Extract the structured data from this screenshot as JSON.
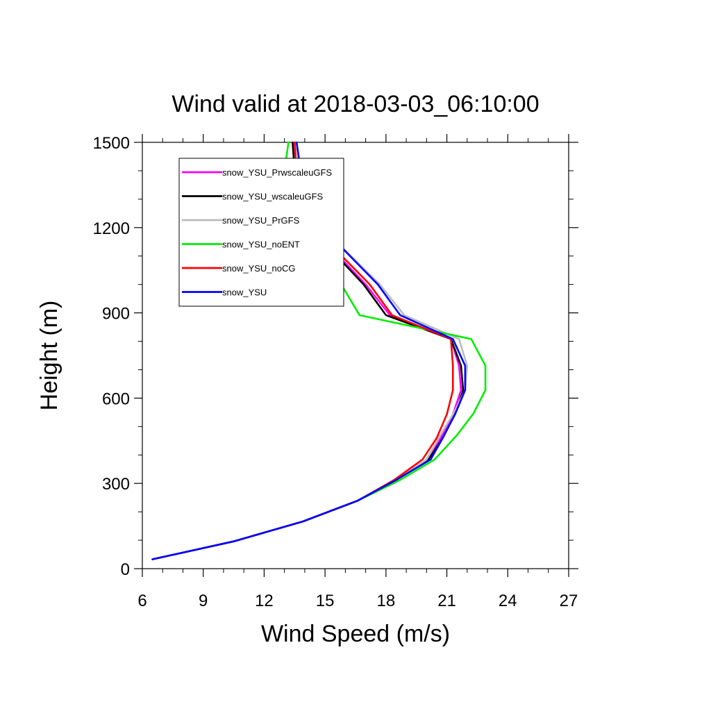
{
  "chart_data": {
    "type": "line",
    "title": "Wind valid at 2018-03-03_06:10:00",
    "xlabel": "Wind Speed (m/s)",
    "ylabel": "Height (m)",
    "xlim": [
      6,
      27
    ],
    "ylim": [
      0,
      1500
    ],
    "x_ticks": [
      "6",
      "9",
      "12",
      "15",
      "18",
      "21",
      "24",
      "27"
    ],
    "y_ticks": [
      "0",
      "300",
      "600",
      "900",
      "1200",
      "1500"
    ],
    "legend_position": "top-left",
    "series": [
      {
        "name": "snow_YSU_PrwscaleuGFS",
        "color": "#ff00ff",
        "points": [
          [
            6.5,
            33
          ],
          [
            10.5,
            96
          ],
          [
            13.9,
            166
          ],
          [
            16.6,
            239
          ],
          [
            18.5,
            312
          ],
          [
            20.1,
            384
          ],
          [
            20.7,
            460
          ],
          [
            21.3,
            543
          ],
          [
            21.7,
            628
          ],
          [
            21.6,
            714
          ],
          [
            21.2,
            808
          ],
          [
            18.2,
            892
          ],
          [
            17.0,
            1000
          ],
          [
            14.5,
            1190
          ],
          [
            13.7,
            1300
          ],
          [
            13.5,
            1500
          ]
        ]
      },
      {
        "name": "snow_YSU_wscaleuGFS",
        "color": "#000000",
        "points": [
          [
            6.5,
            33
          ],
          [
            10.5,
            96
          ],
          [
            13.9,
            166
          ],
          [
            16.6,
            239
          ],
          [
            18.5,
            312
          ],
          [
            20.1,
            384
          ],
          [
            20.8,
            460
          ],
          [
            21.4,
            543
          ],
          [
            21.8,
            628
          ],
          [
            21.7,
            714
          ],
          [
            21.2,
            808
          ],
          [
            18.0,
            892
          ],
          [
            16.9,
            1000
          ],
          [
            14.4,
            1190
          ],
          [
            13.6,
            1300
          ],
          [
            13.4,
            1500
          ]
        ]
      },
      {
        "name": "snow_YSU_PrGFS",
        "color": "#bbbbbb",
        "points": [
          [
            6.5,
            33
          ],
          [
            10.5,
            96
          ],
          [
            13.9,
            166
          ],
          [
            16.6,
            239
          ],
          [
            18.5,
            312
          ],
          [
            20.0,
            384
          ],
          [
            20.6,
            460
          ],
          [
            21.3,
            543
          ],
          [
            21.9,
            628
          ],
          [
            22.0,
            714
          ],
          [
            21.6,
            808
          ],
          [
            18.9,
            892
          ],
          [
            17.7,
            1000
          ],
          [
            15.0,
            1190
          ],
          [
            13.9,
            1300
          ],
          [
            13.6,
            1500
          ]
        ]
      },
      {
        "name": "snow_YSU_noENT",
        "color": "#00ee00",
        "points": [
          [
            6.5,
            33
          ],
          [
            10.5,
            96
          ],
          [
            13.9,
            166
          ],
          [
            16.6,
            239
          ],
          [
            18.7,
            312
          ],
          [
            20.4,
            384
          ],
          [
            21.5,
            470
          ],
          [
            22.3,
            545
          ],
          [
            22.9,
            628
          ],
          [
            22.9,
            714
          ],
          [
            22.2,
            808
          ],
          [
            16.7,
            892
          ],
          [
            15.8,
            1000
          ],
          [
            12.9,
            1190
          ],
          [
            12.8,
            1300
          ],
          [
            13.2,
            1500
          ]
        ]
      },
      {
        "name": "snow_YSU_noCG",
        "color": "#ff0000",
        "points": [
          [
            6.5,
            33
          ],
          [
            10.5,
            96
          ],
          [
            13.9,
            166
          ],
          [
            16.6,
            239
          ],
          [
            18.4,
            312
          ],
          [
            19.8,
            384
          ],
          [
            20.5,
            460
          ],
          [
            21.0,
            543
          ],
          [
            21.3,
            628
          ],
          [
            21.3,
            714
          ],
          [
            21.2,
            808
          ],
          [
            18.3,
            892
          ],
          [
            17.2,
            1000
          ],
          [
            14.6,
            1190
          ],
          [
            13.7,
            1300
          ],
          [
            13.5,
            1500
          ]
        ]
      },
      {
        "name": "snow_YSU",
        "color": "#0000ff",
        "points": [
          [
            6.5,
            33
          ],
          [
            10.5,
            96
          ],
          [
            13.9,
            166
          ],
          [
            16.6,
            239
          ],
          [
            18.5,
            312
          ],
          [
            20.2,
            384
          ],
          [
            20.8,
            460
          ],
          [
            21.4,
            543
          ],
          [
            21.9,
            628
          ],
          [
            21.9,
            714
          ],
          [
            21.3,
            808
          ],
          [
            18.7,
            892
          ],
          [
            17.6,
            1000
          ],
          [
            15.0,
            1190
          ],
          [
            14.0,
            1300
          ],
          [
            13.6,
            1500
          ]
        ]
      }
    ]
  }
}
